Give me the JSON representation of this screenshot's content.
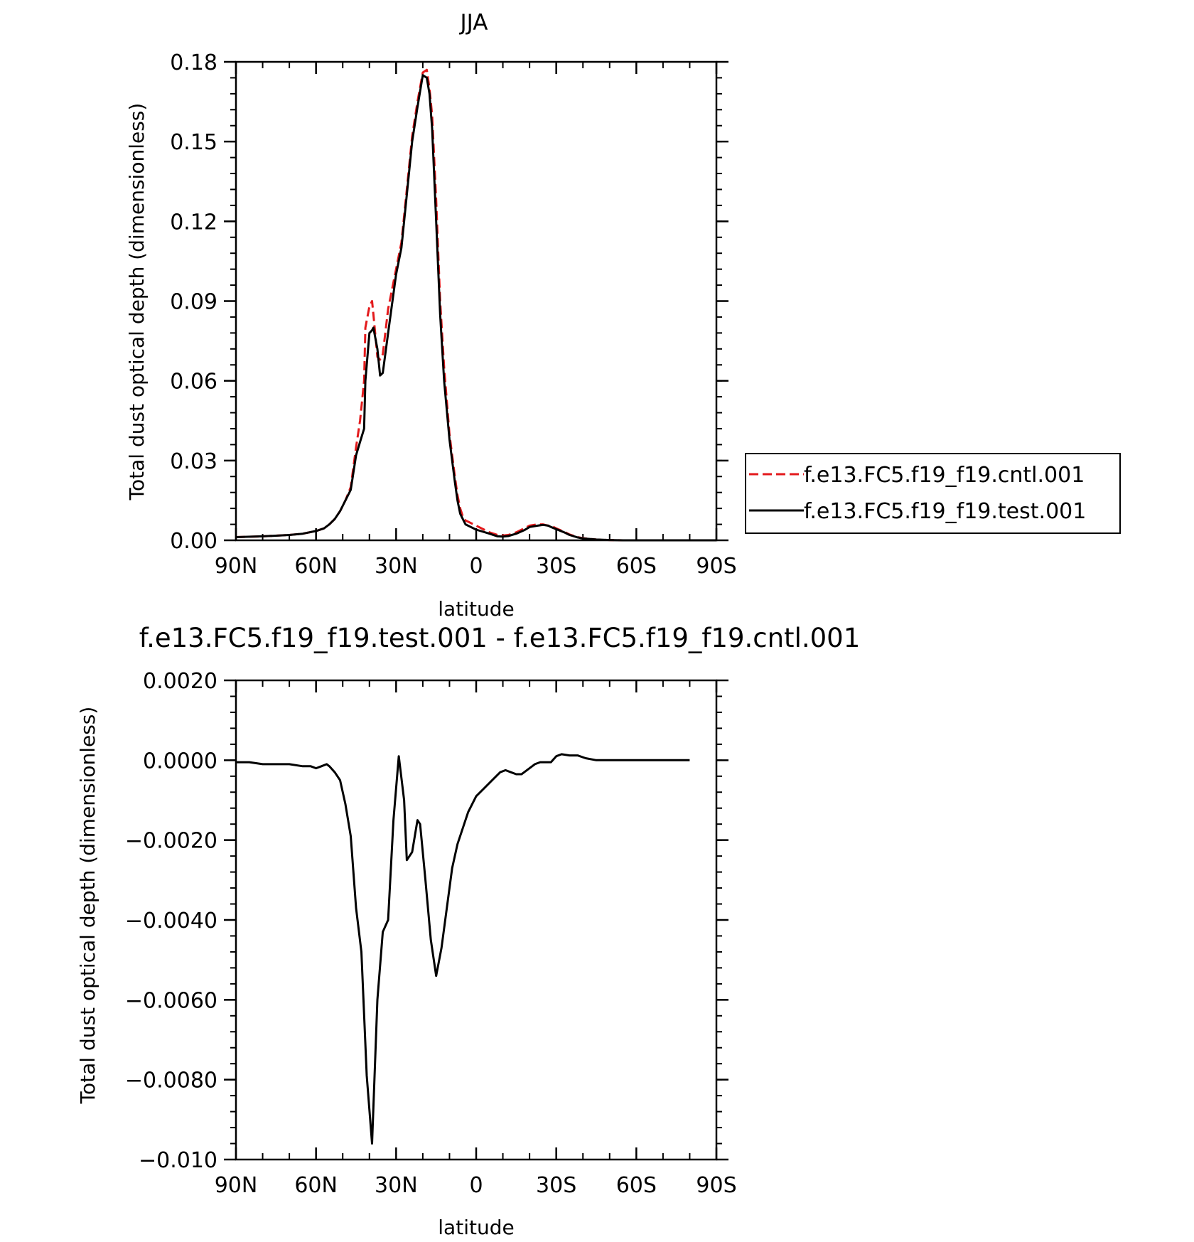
{
  "chart_data": [
    {
      "type": "line",
      "title": "JJA",
      "xlabel": "latitude",
      "ylabel": "Total dust optical depth (dimensionless)",
      "xlim": [
        90,
        -90
      ],
      "ylim": [
        0,
        0.18
      ],
      "x_ticks": [
        90,
        60,
        30,
        0,
        -30,
        -60,
        -90
      ],
      "x_tick_labels": [
        "90N",
        "60N",
        "30N",
        "0",
        "30S",
        "60S",
        "90S"
      ],
      "y_ticks": [
        0,
        0.03,
        0.06,
        0.09,
        0.12,
        0.15,
        0.18
      ],
      "y_tick_labels": [
        "0.00",
        "0.03",
        "0.06",
        "0.09",
        "0.12",
        "0.15",
        "0.18"
      ],
      "legend_position": "right",
      "grid": false,
      "series": [
        {
          "name": "f.e13.FC5.f19_f19.cntl.001",
          "color": "#e31a1c",
          "dash": "dashed",
          "x": [
            90,
            80,
            70,
            65,
            60,
            57,
            55,
            53,
            51,
            49,
            47,
            45,
            43.5,
            42,
            41.5,
            40,
            39,
            38.5,
            37,
            36,
            35,
            33,
            30,
            28,
            26,
            24,
            22,
            20,
            18.5,
            17.5,
            16.5,
            15,
            13.5,
            12,
            10,
            8,
            7,
            6,
            5,
            4,
            2,
            0,
            -5,
            -8,
            -10,
            -12,
            -15,
            -18,
            -20,
            -23,
            -25,
            -27,
            -28,
            -30,
            -33,
            -35,
            -38,
            -40,
            -45,
            -50,
            -55,
            -60,
            -70,
            -80,
            -90
          ],
          "y": [
            0.0012,
            0.0015,
            0.002,
            0.0025,
            0.0035,
            0.0045,
            0.006,
            0.008,
            0.011,
            0.015,
            0.02,
            0.035,
            0.045,
            0.06,
            0.08,
            0.088,
            0.09,
            0.085,
            0.069,
            0.068,
            0.07,
            0.087,
            0.102,
            0.112,
            0.132,
            0.152,
            0.165,
            0.176,
            0.177,
            0.17,
            0.16,
            0.128,
            0.09,
            0.065,
            0.04,
            0.024,
            0.017,
            0.012,
            0.009,
            0.0075,
            0.0065,
            0.0055,
            0.003,
            0.002,
            0.0018,
            0.002,
            0.003,
            0.0045,
            0.0055,
            0.006,
            0.006,
            0.0055,
            0.0055,
            0.0045,
            0.0032,
            0.0022,
            0.0012,
            0.0008,
            0.0003,
            0.0001,
            0,
            0,
            0,
            0,
            0
          ]
        },
        {
          "name": "f.e13.FC5.f19_f19.test.001",
          "color": "#000000",
          "dash": "solid",
          "x": [
            90,
            80,
            70,
            65,
            60,
            57,
            55,
            53,
            51,
            49,
            47,
            45,
            43.5,
            42,
            41.5,
            40,
            39,
            38.5,
            37,
            36,
            35,
            33,
            30,
            28,
            26,
            24,
            22,
            20,
            18.5,
            17.5,
            16.5,
            15,
            13.5,
            12,
            10,
            8,
            7,
            6,
            5,
            4,
            2,
            0,
            -5,
            -8,
            -10,
            -12,
            -15,
            -18,
            -20,
            -23,
            -25,
            -27,
            -28,
            -30,
            -33,
            -35,
            -38,
            -40,
            -45,
            -50,
            -55,
            -60,
            -70,
            -80,
            -90
          ],
          "y": [
            0.0012,
            0.0015,
            0.002,
            0.0025,
            0.0035,
            0.0045,
            0.006,
            0.008,
            0.011,
            0.015,
            0.019,
            0.032,
            0.037,
            0.042,
            0.06,
            0.078,
            0.079,
            0.08,
            0.072,
            0.062,
            0.063,
            0.078,
            0.1,
            0.11,
            0.13,
            0.15,
            0.163,
            0.175,
            0.174,
            0.168,
            0.155,
            0.12,
            0.085,
            0.06,
            0.038,
            0.022,
            0.015,
            0.01,
            0.008,
            0.006,
            0.005,
            0.004,
            0.0025,
            0.0015,
            0.0014,
            0.0016,
            0.0025,
            0.0038,
            0.005,
            0.0055,
            0.0058,
            0.0055,
            0.005,
            0.0042,
            0.003,
            0.002,
            0.0011,
            0.0007,
            0.0003,
            0.0001,
            0,
            0,
            0,
            0,
            0
          ]
        }
      ]
    },
    {
      "type": "line",
      "title": "f.e13.FC5.f19_f19.test.001 - f.e13.FC5.f19_f19.cntl.001",
      "xlabel": "latitude",
      "ylabel": "Total dust optical depth (dimensionless)",
      "xlim": [
        90,
        -90
      ],
      "ylim": [
        -0.01,
        0.002
      ],
      "x_ticks": [
        90,
        60,
        30,
        0,
        -30,
        -60,
        -90
      ],
      "x_tick_labels": [
        "90N",
        "60N",
        "30N",
        "0",
        "30S",
        "60S",
        "90S"
      ],
      "y_ticks": [
        -0.01,
        -0.008,
        -0.006,
        -0.004,
        -0.002,
        0,
        0.002
      ],
      "y_tick_labels": [
        "−0.010",
        "−0.0080",
        "−0.0060",
        "−0.0040",
        "−0.0020",
        "0.0000",
        "0.0020"
      ],
      "grid": false,
      "series": [
        {
          "color": "#000000",
          "dash": "solid",
          "x": [
            90,
            85,
            80,
            75,
            70,
            65,
            62,
            60,
            58,
            56,
            55,
            53,
            51,
            49,
            47,
            45,
            43,
            41,
            39,
            37,
            35,
            33,
            31,
            29,
            27,
            26,
            24,
            22,
            21,
            19,
            17,
            15,
            13,
            11,
            9,
            7,
            5,
            3,
            0,
            -3,
            -6,
            -9,
            -11,
            -13,
            -15,
            -17,
            -18,
            -20,
            -22,
            -24,
            -27,
            -28,
            -30,
            -32,
            -35,
            -38,
            -41,
            -45,
            -50,
            -60,
            -70,
            -80
          ],
          "y": [
            -5e-05,
            -5e-05,
            -0.0001,
            -0.0001,
            -0.0001,
            -0.00015,
            -0.00015,
            -0.0002,
            -0.00015,
            -0.0001,
            -0.00015,
            -0.0003,
            -0.0005,
            -0.0011,
            -0.0019,
            -0.0037,
            -0.0048,
            -0.0079,
            -0.0096,
            -0.006,
            -0.0043,
            -0.004,
            -0.0015,
            0.0001,
            -0.001,
            -0.0025,
            -0.0023,
            -0.0015,
            -0.0016,
            -0.003,
            -0.0045,
            -0.0054,
            -0.0047,
            -0.0037,
            -0.0027,
            -0.0021,
            -0.0017,
            -0.0013,
            -0.0009,
            -0.0007,
            -0.0005,
            -0.0003,
            -0.00025,
            -0.0003,
            -0.00035,
            -0.00035,
            -0.0003,
            -0.0002,
            -0.0001,
            -5e-05,
            -5e-05,
            -5e-05,
            0.0001,
            0.00015,
            0.00012,
            0.00012,
            5e-05,
            0,
            0,
            0,
            0,
            0
          ]
        }
      ]
    }
  ]
}
